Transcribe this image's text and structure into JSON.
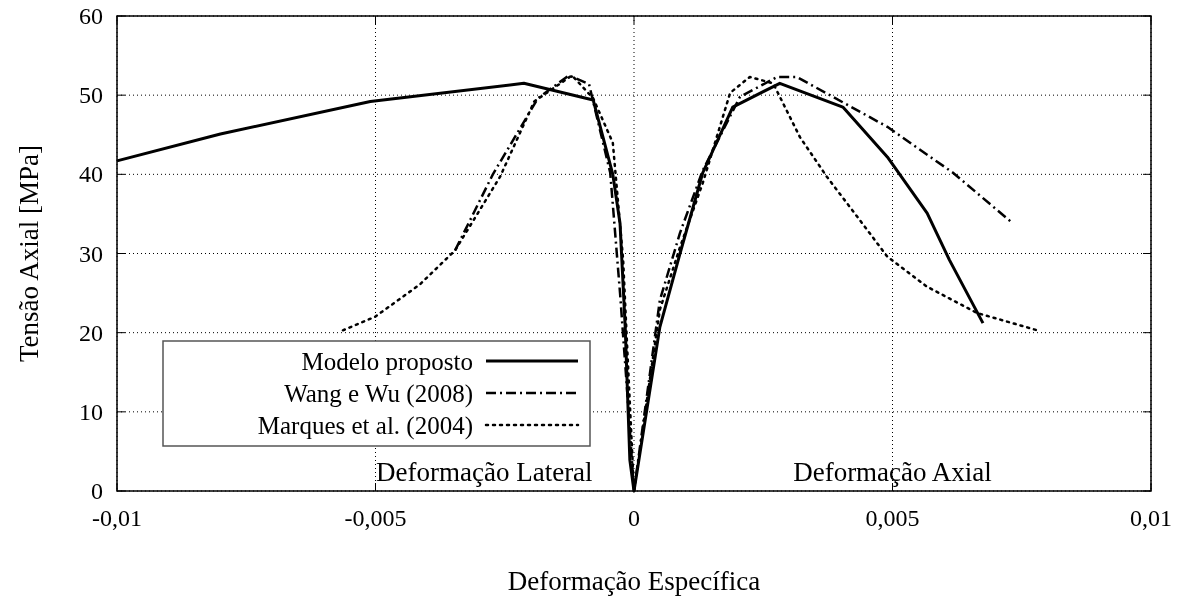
{
  "chart_data": {
    "type": "line",
    "xlabel": "Deformação Específica",
    "ylabel": "Tensão Axial [MPa]",
    "xlim": [
      -0.01,
      0.01
    ],
    "xticks": [
      {
        "value": -0.01,
        "label": "-0,01"
      },
      {
        "value": -0.005,
        "label": "-0,005"
      },
      0,
      {
        "value": 0.005,
        "label": "0,005"
      },
      {
        "value": 0.01,
        "label": "0,01"
      }
    ],
    "ylim": [
      0,
      60
    ],
    "yticks": [
      0,
      10,
      20,
      30,
      40,
      50,
      60
    ],
    "grid": true,
    "legend": "bottom left",
    "annotations": [
      "Deformação Lateral",
      "Deformação Axial"
    ],
    "series": [
      {
        "name": "Modelo proposto",
        "color": "#000000",
        "line_style": "solid",
        "x": [
          -0.01,
          -0.008,
          -0.0051,
          -0.00213,
          -0.00079,
          -0.00041,
          -0.00027,
          -0.00017,
          -8e-05,
          0,
          0.0005,
          0.00089,
          0.00133,
          0.00191,
          0.00282,
          0.00404,
          0.0049,
          0.00567,
          0.0061,
          0.00675
        ],
        "values": [
          41.7,
          45.1,
          49.2,
          51.5,
          49.4,
          40,
          33.8,
          20.7,
          3.9,
          0,
          20.7,
          30,
          40.2,
          48.5,
          51.5,
          48.5,
          42.2,
          35.1,
          29.2,
          21.2
        ]
      },
      {
        "name": "Wang e Wu (2008)",
        "color": "#000000",
        "line_style": "dashed",
        "x": [
          -0.00346,
          -0.00273,
          -0.00186,
          -0.00126,
          -0.00087,
          -0.00046,
          -0.00027,
          -0.00013,
          0,
          0.0005,
          0.00089,
          0.00133,
          0.00205,
          0.00277,
          0.00315,
          0.0049,
          0.00617,
          0.00733
        ],
        "values": [
          30.4,
          40,
          49.6,
          52.5,
          51.4,
          40.2,
          25,
          12.4,
          0,
          24.1,
          32.6,
          40.5,
          49.8,
          52.3,
          52.3,
          46,
          40.2,
          33.8
        ]
      },
      {
        "name": "Marques et al. (2004)",
        "color": "#000000",
        "line_style": "dotted",
        "x": [
          -0.00563,
          -0.00501,
          -0.00414,
          -0.00346,
          -0.00259,
          -0.00193,
          -0.0012,
          -0.00079,
          -0.00041,
          -0.00021,
          -0.00012,
          0,
          0.0005,
          0.00089,
          0.00133,
          0.00186,
          0.00224,
          0.00269,
          0.00321,
          0.00373,
          0.00437,
          0.0049,
          0.00567,
          0.00663,
          0.0078
        ],
        "values": [
          20.3,
          22,
          26.1,
          30.4,
          39.7,
          49.2,
          52.5,
          49.6,
          44,
          29.2,
          16.5,
          0,
          22.9,
          30.8,
          38.9,
          50.3,
          52.3,
          51.5,
          44.7,
          39.7,
          34.2,
          29.6,
          25.8,
          22.5,
          20.3
        ]
      }
    ]
  }
}
